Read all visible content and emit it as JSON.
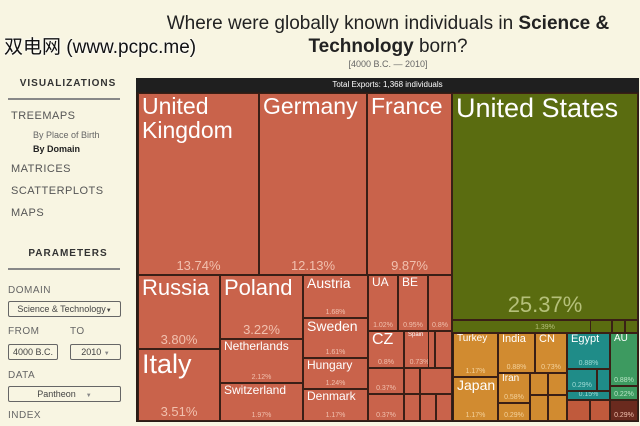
{
  "title": {
    "pre": "Where were globally known individuals in ",
    "bold1": "Science &",
    "bold2": "Technology",
    "post": " born?",
    "range": "[4000 B.C. — 2010]"
  },
  "sidebar": {
    "visualizations": "VISUALIZATIONS",
    "treemaps": "TREEMAPS",
    "by_place": "By Place of Birth",
    "by_domain": "By Domain",
    "matrices": "MATRICES",
    "scatterplots": "SCATTERPLOTS",
    "maps": "MAPS",
    "parameters": "PARAMETERS",
    "domain_label": "DOMAIN",
    "domain_value": "Science & Technology",
    "from_label": "FROM",
    "from_value": "4000 B.C.",
    "to_label": "TO",
    "to_value": "2010",
    "data_label": "DATA",
    "data_value": "Pantheon",
    "index_label": "INDEX"
  },
  "treemap": {
    "header": "Total Exports: 1,368 individuals",
    "tiles": [
      {
        "name": "United Kingdom",
        "pct": "13.74%"
      },
      {
        "name": "Germany",
        "pct": "12.13%"
      },
      {
        "name": "France",
        "pct": "9.87%"
      },
      {
        "name": "United States",
        "pct": "25.37%"
      },
      {
        "name": "Russia",
        "pct": "3.80%"
      },
      {
        "name": "Italy",
        "pct": "3.51%"
      },
      {
        "name": "Poland",
        "pct": "3.22%"
      },
      {
        "name": "Netherlands",
        "pct": "2.12%"
      },
      {
        "name": "Switzerland",
        "pct": "1.97%"
      },
      {
        "name": "Austria",
        "pct": "1.68%"
      },
      {
        "name": "Sweden",
        "pct": "1.61%"
      },
      {
        "name": "Hungary",
        "pct": "1.24%"
      },
      {
        "name": "Denmark",
        "pct": "1.17%"
      },
      {
        "name": "UA",
        "pct": "1.02%"
      },
      {
        "name": "BE",
        "pct": "0.95%"
      },
      {
        "name": "",
        "pct": "0.8%"
      },
      {
        "name": "CZ",
        "pct": "0.8%"
      },
      {
        "name": "Spain",
        "pct": "0.73%"
      },
      {
        "name": "",
        "pct": "0.37%"
      },
      {
        "name": "",
        "pct": "0.37%"
      },
      {
        "name": "",
        "pct": "1.39%"
      },
      {
        "name": "Turkey",
        "pct": "1.17%"
      },
      {
        "name": "Japan",
        "pct": "1.17%"
      },
      {
        "name": "India",
        "pct": "0.88%"
      },
      {
        "name": "CN",
        "pct": "0.73%"
      },
      {
        "name": "Iran",
        "pct": "0.58%"
      },
      {
        "name": "",
        "pct": "0.29%"
      },
      {
        "name": "Egypt",
        "pct": "0.88%"
      },
      {
        "name": "",
        "pct": "0.29%"
      },
      {
        "name": "",
        "pct": "0.15%"
      },
      {
        "name": "AU",
        "pct": "0.88%"
      },
      {
        "name": "",
        "pct": "0.22%"
      },
      {
        "name": "",
        "pct": "0.29%"
      }
    ]
  },
  "watermark": "双电网 (www.pcpc.me)"
}
